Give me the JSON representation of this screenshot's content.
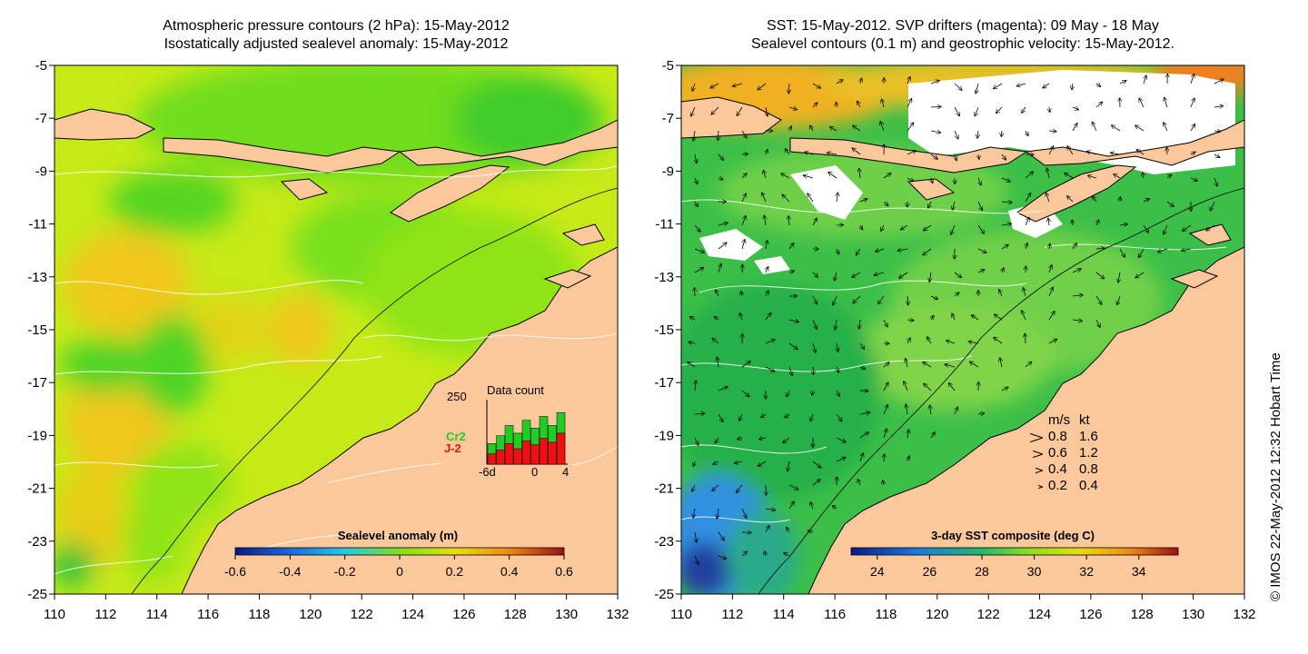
{
  "left_panel": {
    "title_line1": "Atmospheric pressure contours (2 hPa): 15-May-2012",
    "title_line2": "Isostatically adjusted sealevel anomaly: 15-May-2012",
    "colorbar_label": "Sealevel anomaly (m)",
    "colorbar_ticks": [
      "-0.6",
      "-0.4",
      "-0.2",
      "0",
      "0.2",
      "0.4",
      "0.6"
    ],
    "inset": {
      "title": "Data count",
      "ymax_label": "250",
      "xlabels": [
        "-6d",
        "0",
        "4"
      ],
      "legend_cr2": "Cr2",
      "legend_j2": "J-2",
      "cr2_color": "#22cc22",
      "j2_color": "#ee1111",
      "bars": [
        {
          "j2": 40,
          "cr2": 80
        },
        {
          "j2": 55,
          "cr2": 110
        },
        {
          "j2": 80,
          "cr2": 150
        },
        {
          "j2": 60,
          "cr2": 120
        },
        {
          "j2": 90,
          "cr2": 170
        },
        {
          "j2": 75,
          "cr2": 140
        },
        {
          "j2": 100,
          "cr2": 185
        },
        {
          "j2": 85,
          "cr2": 150
        },
        {
          "j2": 120,
          "cr2": 200
        }
      ]
    }
  },
  "right_panel": {
    "title_line1": "SST: 15-May-2012. SVP drifters (magenta): 09 May - 18 May",
    "title_line2": "Sealevel contours (0.1 m) and geostrophic velocity: 15-May-2012.",
    "colorbar_label": "3-day SST composite (deg C)",
    "colorbar_ticks": [
      "24",
      "26",
      "28",
      "30",
      "32",
      "34"
    ],
    "velocity_legend": {
      "header_ms": "m/s",
      "header_kt": "kt",
      "rows": [
        {
          "ms": "0.8",
          "kt": "1.6"
        },
        {
          "ms": "0.6",
          "kt": "1.2"
        },
        {
          "ms": "0.4",
          "kt": "0.8"
        },
        {
          "ms": "0.2",
          "kt": "0.4"
        }
      ]
    }
  },
  "axes": {
    "y_ticks": [
      "-5",
      "-7",
      "-9",
      "-11",
      "-13",
      "-15",
      "-17",
      "-19",
      "-21",
      "-23",
      "-25"
    ],
    "x_ticks": [
      "110",
      "112",
      "114",
      "116",
      "118",
      "120",
      "122",
      "124",
      "126",
      "128",
      "130",
      "132"
    ]
  },
  "credit": "© IMOS 22-May-2012 12:32 Hobart Time",
  "colors": {
    "land": "#fbc89b",
    "sla_green": "#7fe01a",
    "sla_yellow": "#d9ec12",
    "sla_orange": "#f3c419",
    "sst_green": "#2fb84a",
    "sst_blue": "#2d8fe0"
  }
}
